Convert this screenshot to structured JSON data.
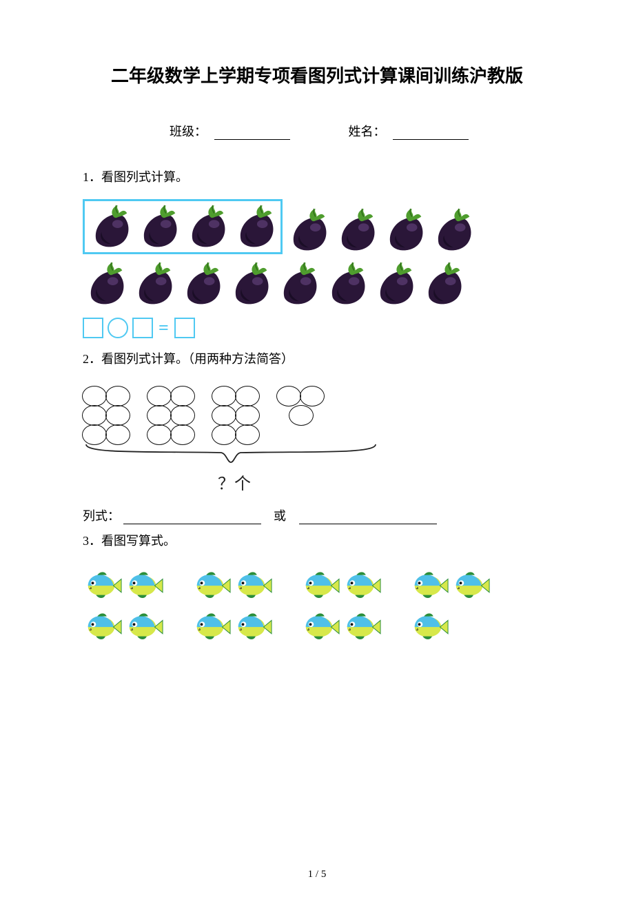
{
  "title": "二年级数学上学期专项看图列式计算课间训练沪教版",
  "form": {
    "class_label": "班级：",
    "name_label": "姓名："
  },
  "q1": {
    "label": "1．看图列式计算。",
    "box_border_color": "#4fc9f2",
    "row1_boxed": 4,
    "row1_rest": 4,
    "row2_count": 8,
    "eggplant_colors": {
      "body": "#2a1638",
      "leaf": "#4f9d2e",
      "leaf_dark": "#2e6e18",
      "highlight": "#6b4a86"
    },
    "eq_color": "#4fc9f2"
  },
  "q2": {
    "label": "2．看图列式计算。（用两种方法简答）",
    "groups": [
      [
        2,
        2,
        2
      ],
      [
        2,
        2,
        2
      ],
      [
        2,
        2,
        2
      ],
      [
        2,
        1
      ]
    ],
    "bracket_label": "？个",
    "lieshi_label": "列式：",
    "or_label": "或"
  },
  "q3": {
    "label": "3．看图写算式。",
    "rows": [
      [
        2,
        2,
        2,
        2
      ],
      [
        2,
        2,
        2,
        1
      ]
    ],
    "fish_colors": {
      "body1": "#4fc0e8",
      "body2": "#d7e84a",
      "eye": "#111",
      "fin": "#2a8e3a"
    }
  },
  "footer": "1 / 5"
}
